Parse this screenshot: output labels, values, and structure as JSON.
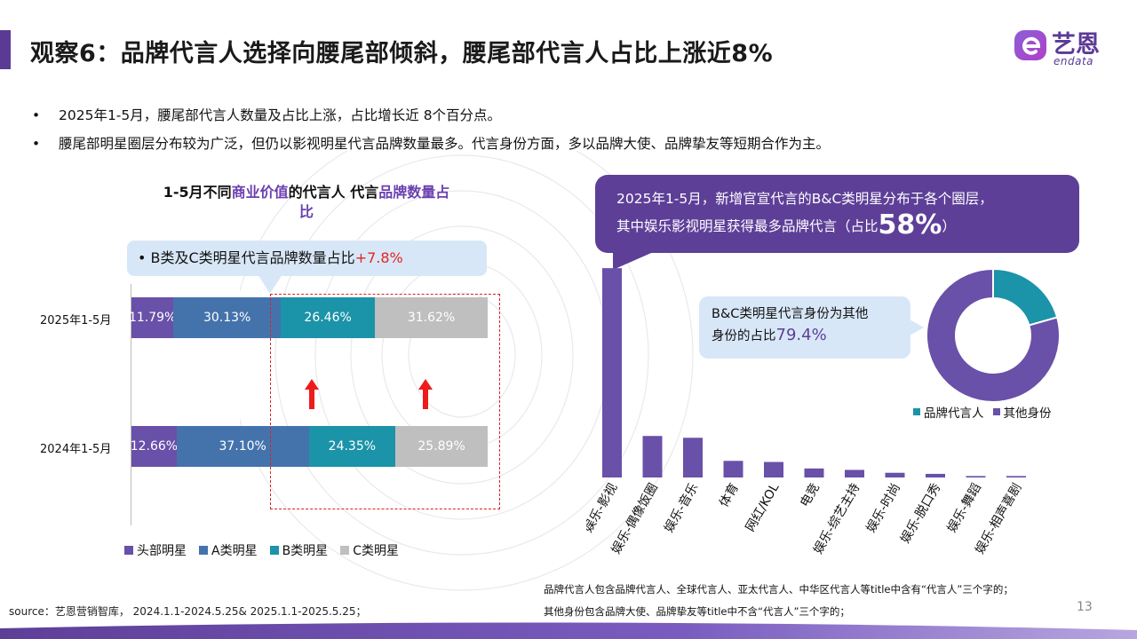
{
  "header": {
    "title": "观察6：品牌代言人选择向腰尾部倾斜，腰尾部代言人占比上涨近8%",
    "logo_cn": "艺恩",
    "logo_en": "endata"
  },
  "bullets": [
    "2025年1-5月，腰尾部代言人数量及占比上涨，占比增长近 8个百分点。",
    "腰尾部明星圈层分布较为广泛，但仍以影视明星代言品牌数量最多。代言身份方面，多以品牌大使、品牌挚友等短期合作为主。"
  ],
  "left_chart": {
    "title_parts": [
      "1-5月不同",
      "商业价值",
      "的代言人   代言",
      "品牌数量占",
      "比"
    ],
    "callout_prefix": "B类及C类明星代言品牌数量占比",
    "callout_value": "+7.8%"
  },
  "right_chart": {
    "callout_line1": "2025年1-5月，新增官宣代言的B&C类明星分布于各个圈层，",
    "callout_line2": "其中娱乐影视明星获得最多品牌代言（占比",
    "callout_big": "58%",
    "callout_end": "）",
    "donut_callout_line1": "B&C类明星代言身份为其他",
    "donut_callout_line2": "身份的占比",
    "donut_callout_value": "79.4%"
  },
  "notes": [
    "品牌代言人包含品牌代言人、全球代言人、亚太代言人、中华区代言人等title中含有“代言人”三个字的；",
    "其他身份包含品牌大使、品牌挚友等title中不含“代言人”三个字的；"
  ],
  "footer": {
    "source": "source：艺恩营销智库， 2024.1.1-2024.5.25& 2025.1.1-2025.5.25；",
    "page_number": "13"
  },
  "colors": {
    "purple": "#6950a8",
    "blue": "#4473ac",
    "teal": "#1b93a8",
    "gray": "#bfbfbf",
    "brand": "#5e3f98",
    "red": "#e02020"
  },
  "chart_data": [
    {
      "type": "bar",
      "orientation": "horizontal-stacked-100",
      "categories": [
        "2025年1-5月",
        "2024年1-5月"
      ],
      "series": [
        {
          "name": "头部明星",
          "values": [
            11.79,
            12.66
          ],
          "labels": [
            "11.79%",
            "12.66%"
          ]
        },
        {
          "name": "A类明星",
          "values": [
            30.13,
            37.1
          ],
          "labels": [
            "30.13%",
            "37.10%"
          ]
        },
        {
          "name": "B类明星",
          "values": [
            26.46,
            24.35
          ],
          "labels": [
            "26.46%",
            "24.35%"
          ]
        },
        {
          "name": "C类明星",
          "values": [
            31.62,
            25.89
          ],
          "labels": [
            "31.62%",
            "25.89%"
          ]
        }
      ],
      "legend": "bottom"
    },
    {
      "type": "bar",
      "orientation": "vertical",
      "categories": [
        "娱乐-影视",
        "娱乐-偶像饭圈",
        "娱乐-音乐",
        "体育",
        "网红/KOL",
        "电竞",
        "娱乐-综艺主持",
        "娱乐-时尚",
        "娱乐-脱口秀",
        "娱乐-舞蹈",
        "娱乐-相声喜剧"
      ],
      "values": [
        58,
        11.5,
        11,
        4.6,
        4.3,
        2.5,
        2.1,
        1.3,
        1.0,
        0.4,
        0.4
      ],
      "ylim": [
        0,
        60
      ]
    },
    {
      "type": "pie",
      "donut": true,
      "categories": [
        "品牌代言人",
        "其他身份"
      ],
      "values": [
        20.6,
        79.4
      ],
      "legend": "bottom"
    }
  ]
}
